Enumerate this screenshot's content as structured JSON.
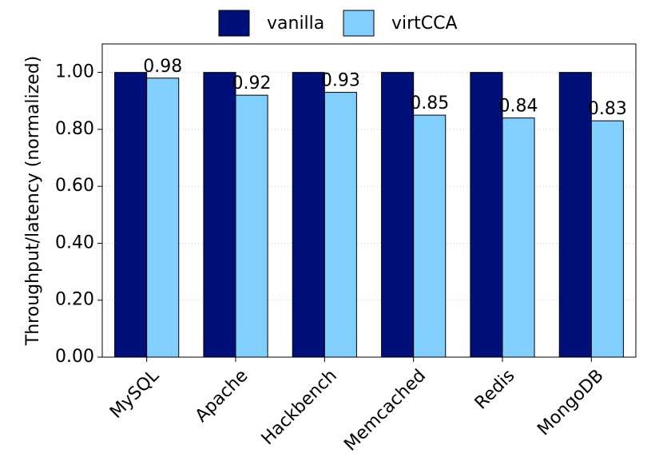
{
  "chart_data": {
    "type": "bar",
    "ylabel": "Throughput/latency (normalized)",
    "categories": [
      "MySQL",
      "Apache",
      "Hackbench",
      "Memcached",
      "Redis",
      "MongoDB"
    ],
    "series": [
      {
        "name": "vanilla",
        "color": "#00107a",
        "values": [
          1,
          1,
          1,
          1,
          1,
          1
        ]
      },
      {
        "name": "virtCCA",
        "color": "#80cfff",
        "values": [
          0.98,
          0.92,
          0.93,
          0.85,
          0.84,
          0.83
        ],
        "show_value_labels": true
      }
    ],
    "ylim": [
      0,
      1.1
    ],
    "yticks": [
      {
        "value": 0,
        "label": "0.00"
      },
      {
        "value": 0.2,
        "label": "0.20"
      },
      {
        "value": 0.4,
        "label": "0.40"
      },
      {
        "value": 0.6,
        "label": "0.60"
      },
      {
        "value": 0.8,
        "label": "0.80"
      },
      {
        "value": 1,
        "label": "1.00"
      }
    ],
    "grid": true,
    "legend": "top"
  }
}
